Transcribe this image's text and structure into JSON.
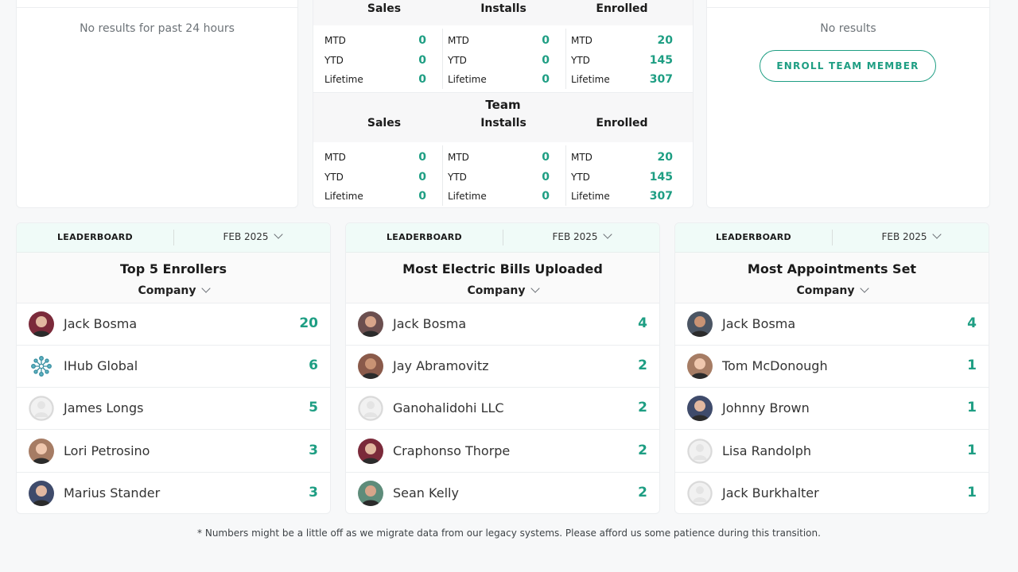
{
  "top_left": {
    "empty_message": "No results for past 24 hours"
  },
  "stats": {
    "columns": [
      "Sales",
      "Installs",
      "Enrolled"
    ],
    "personal": {
      "sales": [
        [
          "MTD",
          "0"
        ],
        [
          "YTD",
          "0"
        ],
        [
          "Lifetime",
          "0"
        ]
      ],
      "installs": [
        [
          "MTD",
          "0"
        ],
        [
          "YTD",
          "0"
        ],
        [
          "Lifetime",
          "0"
        ]
      ],
      "enrolled": [
        [
          "MTD",
          "20"
        ],
        [
          "YTD",
          "145"
        ],
        [
          "Lifetime",
          "307"
        ]
      ]
    },
    "team_title": "Team",
    "team": {
      "sales": [
        [
          "MTD",
          "0"
        ],
        [
          "YTD",
          "0"
        ],
        [
          "Lifetime",
          "0"
        ]
      ],
      "installs": [
        [
          "MTD",
          "0"
        ],
        [
          "YTD",
          "0"
        ],
        [
          "Lifetime",
          "0"
        ]
      ],
      "enrolled": [
        [
          "MTD",
          "20"
        ],
        [
          "YTD",
          "145"
        ],
        [
          "Lifetime",
          "307"
        ]
      ]
    }
  },
  "top_right": {
    "empty_message": "No results",
    "enroll_button": "ENROLL TEAM MEMBER"
  },
  "leaderboards": [
    {
      "label": "LEADERBOARD",
      "month": "FEB 2025",
      "title": "Top 5 Enrollers",
      "filter": "Company",
      "rows": [
        {
          "name": "Jack Bosma",
          "value": "20",
          "avatar": "photo-avatar"
        },
        {
          "name": "IHub Global",
          "value": "6",
          "avatar": "logo-avatar"
        },
        {
          "name": "James Longs",
          "value": "5",
          "avatar": "placeholder-avatar"
        },
        {
          "name": "Lori Petrosino",
          "value": "3",
          "avatar": "photo-avatar"
        },
        {
          "name": "Marius Stander",
          "value": "3",
          "avatar": "photo-avatar"
        }
      ]
    },
    {
      "label": "LEADERBOARD",
      "month": "FEB 2025",
      "title": "Most Electric Bills Uploaded",
      "filter": "Company",
      "rows": [
        {
          "name": "Jack Bosma",
          "value": "4",
          "avatar": "photo-avatar"
        },
        {
          "name": "Jay Abramovitz",
          "value": "2",
          "avatar": "photo-avatar"
        },
        {
          "name": "Ganohalidohi LLC",
          "value": "2",
          "avatar": "placeholder-avatar"
        },
        {
          "name": "Craphonso Thorpe",
          "value": "2",
          "avatar": "photo-avatar"
        },
        {
          "name": "Sean Kelly",
          "value": "2",
          "avatar": "photo-avatar"
        }
      ]
    },
    {
      "label": "LEADERBOARD",
      "month": "FEB 2025",
      "title": "Most Appointments Set",
      "filter": "Company",
      "rows": [
        {
          "name": "Jack Bosma",
          "value": "4",
          "avatar": "photo-avatar"
        },
        {
          "name": "Tom McDonough",
          "value": "1",
          "avatar": "photo-avatar"
        },
        {
          "name": "Johnny Brown",
          "value": "1",
          "avatar": "photo-avatar"
        },
        {
          "name": "Lisa Randolph",
          "value": "1",
          "avatar": "placeholder-avatar"
        },
        {
          "name": "Jack Burkhalter",
          "value": "1",
          "avatar": "placeholder-avatar"
        }
      ]
    }
  ],
  "footnote": "* Numbers might be a little off as we migrate data from our legacy systems. Please afford us some patience during this transition.",
  "colors": {
    "accent": "#1e9e83",
    "header_tint": "#f0fbf8"
  }
}
